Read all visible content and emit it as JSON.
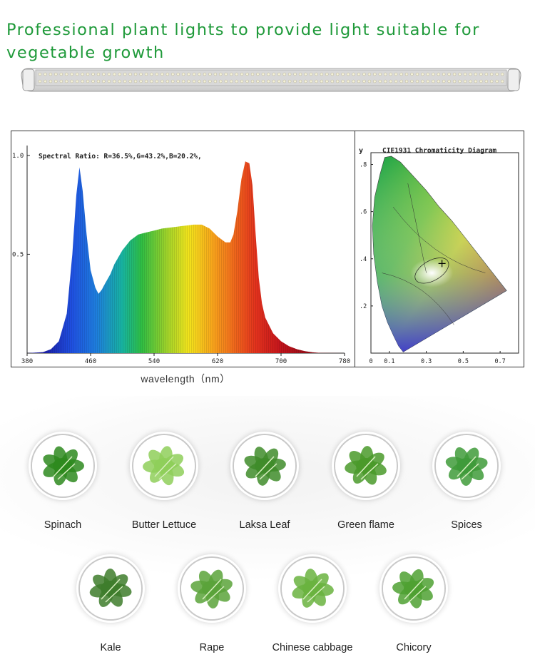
{
  "headline": "Professional plant lights to provide light suitable for vegetable growth",
  "spectrum_xlabel": "wavelength（nm）",
  "chart_data": [
    {
      "type": "area",
      "annotation": "Spectral Ratio:  R=36.5%,G=43.2%,B=20.2%,",
      "x_ticks": [
        "380",
        "460",
        "540",
        "620",
        "700",
        "780"
      ],
      "y_ticks": [
        "1.0",
        "0.5"
      ],
      "xlim": [
        380,
        780
      ],
      "ylim": [
        0,
        1.05
      ],
      "x": [
        380,
        400,
        410,
        420,
        430,
        437,
        442,
        446,
        450,
        455,
        460,
        466,
        470,
        474,
        478,
        485,
        490,
        500,
        510,
        520,
        530,
        540,
        550,
        560,
        570,
        580,
        590,
        600,
        610,
        620,
        630,
        636,
        640,
        645,
        650,
        655,
        660,
        664,
        668,
        672,
        676,
        680,
        690,
        700,
        710,
        720,
        730,
        740,
        750,
        780
      ],
      "values": [
        0,
        0.005,
        0.02,
        0.06,
        0.2,
        0.5,
        0.8,
        0.94,
        0.82,
        0.6,
        0.42,
        0.33,
        0.3,
        0.32,
        0.35,
        0.4,
        0.45,
        0.52,
        0.57,
        0.6,
        0.61,
        0.62,
        0.63,
        0.635,
        0.64,
        0.645,
        0.65,
        0.65,
        0.63,
        0.59,
        0.56,
        0.56,
        0.6,
        0.72,
        0.88,
        0.97,
        0.96,
        0.85,
        0.6,
        0.38,
        0.25,
        0.18,
        0.1,
        0.06,
        0.035,
        0.02,
        0.01,
        0.004,
        0.001,
        0
      ]
    },
    {
      "type": "scatter",
      "title": "CIE1931 Chromaticity Diagram",
      "ylabel": "y",
      "x_ticks": [
        "0",
        "0.1",
        "0.3",
        "0.5",
        "0.7"
      ],
      "y_ticks": [
        ".8",
        ".6",
        ".4",
        ".2"
      ],
      "xlim": [
        0,
        0.8
      ],
      "ylim": [
        0,
        0.85
      ],
      "x": [
        0.385
      ],
      "values": [
        0.38
      ]
    }
  ],
  "vegetables": [
    {
      "name": "Spinach",
      "color": "#2e8a1e"
    },
    {
      "name": "Butter Lettuce",
      "color": "#8fcf5a"
    },
    {
      "name": "Laksa Leaf",
      "color": "#3f8c2a"
    },
    {
      "name": "Green flame",
      "color": "#4a9a2a"
    },
    {
      "name": "Spices",
      "color": "#3f9b3a"
    },
    {
      "name": "Kale",
      "color": "#3e7d2c"
    },
    {
      "name": "Rape",
      "color": "#5aa33a"
    },
    {
      "name": "Chinese cabbage",
      "color": "#6ab33f"
    },
    {
      "name": "Chicory",
      "color": "#4fa132"
    }
  ]
}
